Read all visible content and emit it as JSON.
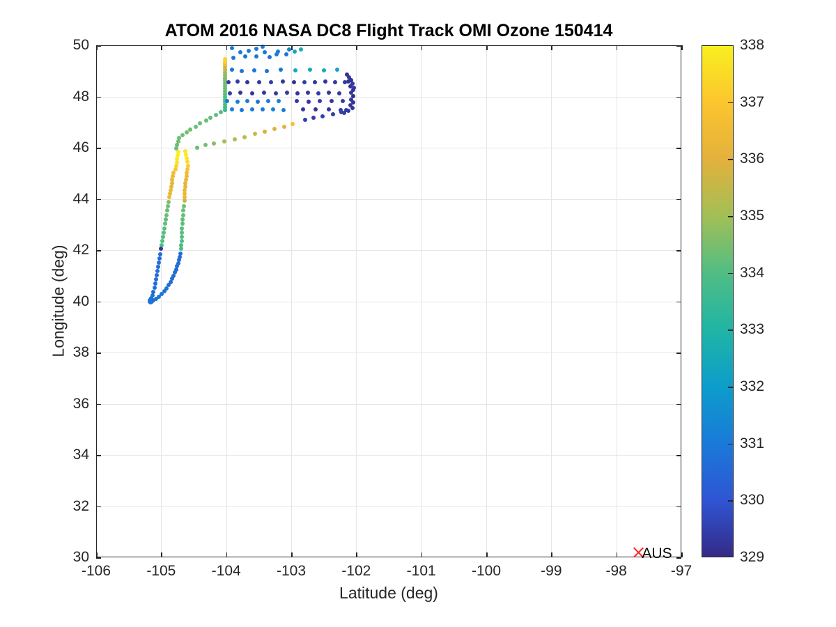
{
  "title": "ATOM 2016 NASA DC8 Flight Track OMI Ozone 150414",
  "xlabel": "Latitude (deg)",
  "ylabel": "Longitude (deg)",
  "colors": {
    "background": "#ffffff",
    "axis": "#262626",
    "grid": "#e6e6e6",
    "title": "#000000",
    "marker_red": "#ff1f1f"
  },
  "chart_data": {
    "type": "scatter",
    "title": "ATOM 2016 NASA DC8 Flight Track OMI Ozone 150414",
    "xlabel": "Latitude (deg)",
    "ylabel": "Longitude (deg)",
    "xlim": [
      -106,
      -97
    ],
    "ylim": [
      30,
      50
    ],
    "xticks": [
      -106,
      -105,
      -104,
      -103,
      -102,
      -101,
      -100,
      -99,
      -98,
      -97
    ],
    "yticks": [
      30,
      32,
      34,
      36,
      38,
      40,
      42,
      44,
      46,
      48,
      50
    ],
    "grid": true,
    "colorbar": {
      "min": 329,
      "max": 338,
      "ticks": [
        329,
        330,
        331,
        332,
        333,
        334,
        335,
        336,
        337,
        338
      ],
      "position": "right"
    },
    "colormap": {
      "name": "parula",
      "colors": [
        "#352a87",
        "#2f55d4",
        "#1a7ad9",
        "#0d9dcb",
        "#20b5a5",
        "#51bd84",
        "#a2bf56",
        "#e3b13c",
        "#fcc52f",
        "#f8ef1f"
      ]
    },
    "marker": {
      "label": "AUS",
      "x": -97.66,
      "y": 30.19,
      "style": "x",
      "color": "#ff1f1f"
    },
    "points": [
      [
        -104.02,
        47.47,
        333.5
      ],
      [
        -104.02,
        47.58,
        333.6
      ],
      [
        -104.02,
        47.68,
        333.8
      ],
      [
        -104.02,
        47.79,
        333.9
      ],
      [
        -104.02,
        47.89,
        334.0
      ],
      [
        -104.02,
        48.0,
        334.0
      ],
      [
        -104.02,
        48.1,
        334.1
      ],
      [
        -104.02,
        48.21,
        334.2
      ],
      [
        -104.02,
        48.31,
        334.3
      ],
      [
        -104.02,
        48.42,
        334.3
      ],
      [
        -104.02,
        48.52,
        334.4
      ],
      [
        -104.02,
        48.63,
        334.5
      ],
      [
        -104.02,
        48.73,
        334.6
      ],
      [
        -104.02,
        48.84,
        334.7
      ],
      [
        -104.02,
        48.94,
        334.9
      ],
      [
        -104.02,
        49.05,
        335.3
      ],
      [
        -104.02,
        49.15,
        335.9
      ],
      [
        -104.02,
        49.26,
        336.6
      ],
      [
        -104.02,
        49.36,
        337.1
      ],
      [
        -104.02,
        49.46,
        337.3
      ],
      [
        -103.91,
        49.89,
        331.0
      ],
      [
        -103.89,
        49.51,
        330.9
      ],
      [
        -103.78,
        49.73,
        331.0
      ],
      [
        -103.71,
        49.56,
        330.8
      ],
      [
        -103.65,
        49.78,
        331.1
      ],
      [
        -103.54,
        49.56,
        330.9
      ],
      [
        -103.54,
        49.86,
        331.0
      ],
      [
        -103.44,
        49.95,
        331.1
      ],
      [
        -103.41,
        49.73,
        330.9
      ],
      [
        -103.33,
        49.54,
        330.8
      ],
      [
        -103.22,
        49.65,
        331.0
      ],
      [
        -103.2,
        49.76,
        331.1
      ],
      [
        -103.07,
        49.65,
        330.9
      ],
      [
        -103.03,
        49.84,
        331.2
      ],
      [
        -102.95,
        49.76,
        332.4
      ],
      [
        -102.85,
        49.84,
        332.6
      ],
      [
        -103.91,
        49.05,
        330.8
      ],
      [
        -103.76,
        48.99,
        330.9
      ],
      [
        -103.57,
        49.03,
        330.9
      ],
      [
        -103.37,
        48.99,
        330.8
      ],
      [
        -103.16,
        49.04,
        330.9
      ],
      [
        -102.94,
        49.02,
        332.4
      ],
      [
        -102.71,
        49.04,
        332.5
      ],
      [
        -102.5,
        49.02,
        332.6
      ],
      [
        -102.29,
        49.04,
        332.4
      ],
      [
        -103.96,
        48.56,
        329.3
      ],
      [
        -103.83,
        48.58,
        329.4
      ],
      [
        -103.67,
        48.56,
        329.2
      ],
      [
        -103.49,
        48.57,
        329.3
      ],
      [
        -103.31,
        48.56,
        329.4
      ],
      [
        -103.13,
        48.58,
        329.3
      ],
      [
        -102.96,
        48.56,
        329.2
      ],
      [
        -102.8,
        48.57,
        329.4
      ],
      [
        -102.64,
        48.56,
        329.3
      ],
      [
        -102.48,
        48.58,
        329.2
      ],
      [
        -102.32,
        48.56,
        329.3
      ],
      [
        -102.18,
        48.57,
        329.4
      ],
      [
        -103.94,
        48.13,
        329.4
      ],
      [
        -103.78,
        48.14,
        329.3
      ],
      [
        -103.6,
        48.13,
        329.2
      ],
      [
        -103.42,
        48.15,
        329.3
      ],
      [
        -103.24,
        48.13,
        329.4
      ],
      [
        -103.06,
        48.14,
        329.3
      ],
      [
        -102.9,
        48.13,
        329.2
      ],
      [
        -102.74,
        48.15,
        329.3
      ],
      [
        -102.58,
        48.13,
        329.4
      ],
      [
        -102.42,
        48.14,
        329.3
      ],
      [
        -102.26,
        48.13,
        329.3
      ],
      [
        -103.99,
        47.82,
        331.0
      ],
      [
        -103.83,
        47.8,
        331.1
      ],
      [
        -103.67,
        47.83,
        331.0
      ],
      [
        -103.51,
        47.8,
        330.9
      ],
      [
        -103.35,
        47.82,
        331.0
      ],
      [
        -103.19,
        47.81,
        331.1
      ],
      [
        -102.91,
        47.82,
        329.4
      ],
      [
        -102.73,
        47.8,
        329.3
      ],
      [
        -102.56,
        47.82,
        329.4
      ],
      [
        -102.38,
        47.81,
        329.3
      ],
      [
        -102.21,
        47.83,
        329.4
      ],
      [
        -103.91,
        47.5,
        331.1
      ],
      [
        -103.76,
        47.48,
        331.0
      ],
      [
        -103.6,
        47.51,
        331.1
      ],
      [
        -103.44,
        47.49,
        331.0
      ],
      [
        -103.28,
        47.5,
        331.2
      ],
      [
        -103.12,
        47.48,
        331.0
      ],
      [
        -102.82,
        47.5,
        329.3
      ],
      [
        -102.63,
        47.49,
        329.2
      ],
      [
        -102.42,
        47.51,
        329.3
      ],
      [
        -102.24,
        47.48,
        329.4
      ],
      [
        -102.14,
        48.86,
        329.2
      ],
      [
        -102.11,
        48.75,
        329.3
      ],
      [
        -102.08,
        48.64,
        329.1
      ],
      [
        -102.06,
        48.5,
        329.3
      ],
      [
        -102.09,
        48.39,
        329.2
      ],
      [
        -102.04,
        48.34,
        329.3
      ],
      [
        -102.05,
        48.26,
        329.2
      ],
      [
        -102.08,
        48.15,
        329.3
      ],
      [
        -102.05,
        48.01,
        329.1
      ],
      [
        -102.08,
        47.88,
        329.3
      ],
      [
        -102.05,
        47.77,
        329.2
      ],
      [
        -102.09,
        47.66,
        329.3
      ],
      [
        -102.06,
        47.55,
        329.2
      ],
      [
        -102.12,
        47.44,
        329.3
      ],
      [
        -102.19,
        47.36,
        329.4
      ],
      [
        -102.12,
        48.59,
        329.2
      ],
      [
        -102.79,
        47.09,
        329.5
      ],
      [
        -102.66,
        47.17,
        329.4
      ],
      [
        -102.52,
        47.22,
        329.5
      ],
      [
        -102.36,
        47.31,
        329.4
      ],
      [
        -102.23,
        47.39,
        329.5
      ],
      [
        -102.15,
        47.47,
        329.4
      ],
      [
        -104.45,
        46.0,
        334.3
      ],
      [
        -104.32,
        46.11,
        334.4
      ],
      [
        -104.19,
        46.16,
        334.6
      ],
      [
        -104.03,
        46.24,
        335.0
      ],
      [
        -103.87,
        46.33,
        335.2
      ],
      [
        -103.72,
        46.41,
        335.4
      ],
      [
        -103.56,
        46.54,
        335.6
      ],
      [
        -103.41,
        46.63,
        335.8
      ],
      [
        -103.26,
        46.73,
        335.9
      ],
      [
        -103.11,
        46.82,
        336.1
      ],
      [
        -102.98,
        46.92,
        336.7
      ],
      [
        -104.08,
        47.39,
        334.1
      ],
      [
        -104.16,
        47.28,
        334.2
      ],
      [
        -104.24,
        47.17,
        334.2
      ],
      [
        -104.31,
        47.06,
        334.3
      ],
      [
        -104.4,
        46.95,
        334.3
      ],
      [
        -104.47,
        46.82,
        334.3
      ],
      [
        -104.55,
        46.71,
        334.4
      ],
      [
        -104.61,
        46.6,
        334.4
      ],
      [
        -104.67,
        46.49,
        334.4
      ],
      [
        -104.72,
        46.38,
        334.4
      ],
      [
        -104.74,
        46.24,
        334.4
      ],
      [
        -104.76,
        46.11,
        334.3
      ],
      [
        -104.77,
        45.97,
        334.3
      ],
      [
        -104.74,
        45.84,
        337.9
      ],
      [
        -104.75,
        45.7,
        338.0
      ],
      [
        -104.76,
        45.56,
        337.9
      ],
      [
        -104.76,
        45.43,
        337.7
      ],
      [
        -104.77,
        45.29,
        337.4
      ],
      [
        -104.78,
        45.16,
        337.0
      ],
      [
        -104.81,
        45.02,
        336.6
      ],
      [
        -104.82,
        44.88,
        336.4
      ],
      [
        -104.83,
        44.75,
        336.3
      ],
      [
        -104.83,
        44.61,
        336.2
      ],
      [
        -104.84,
        44.48,
        336.2
      ],
      [
        -104.85,
        44.34,
        336.3
      ],
      [
        -104.86,
        44.2,
        336.3
      ],
      [
        -104.87,
        44.07,
        336.4
      ],
      [
        -104.89,
        43.88,
        334.5
      ],
      [
        -104.9,
        43.71,
        334.4
      ],
      [
        -104.91,
        43.55,
        334.3
      ],
      [
        -104.92,
        43.36,
        334.3
      ],
      [
        -104.93,
        43.2,
        334.2
      ],
      [
        -104.94,
        43.03,
        334.2
      ],
      [
        -104.95,
        42.84,
        334.1
      ],
      [
        -104.96,
        42.68,
        334.1
      ],
      [
        -104.97,
        42.52,
        334.0
      ],
      [
        -104.98,
        42.35,
        334.0
      ],
      [
        -104.99,
        42.19,
        333.9
      ],
      [
        -105.0,
        42.05,
        329.3
      ],
      [
        -105.01,
        41.84,
        330.6
      ],
      [
        -105.02,
        41.67,
        330.6
      ],
      [
        -105.04,
        41.51,
        330.7
      ],
      [
        -105.05,
        41.35,
        330.6
      ],
      [
        -105.06,
        41.18,
        330.7
      ],
      [
        -105.07,
        41.02,
        330.6
      ],
      [
        -105.08,
        40.86,
        330.7
      ],
      [
        -105.09,
        40.69,
        330.6
      ],
      [
        -105.1,
        40.53,
        330.7
      ],
      [
        -105.12,
        40.37,
        330.6
      ],
      [
        -105.13,
        40.23,
        330.7
      ],
      [
        -105.15,
        40.12,
        330.8
      ],
      [
        -105.17,
        40.04,
        330.9
      ],
      [
        -105.18,
        39.99,
        331.0
      ],
      [
        -105.16,
        39.97,
        330.9
      ],
      [
        -105.14,
        39.99,
        330.8
      ],
      [
        -105.12,
        40.04,
        330.7
      ],
      [
        -104.63,
        45.86,
        337.8
      ],
      [
        -104.62,
        45.73,
        337.9
      ],
      [
        -104.61,
        45.59,
        337.8
      ],
      [
        -104.6,
        45.46,
        337.5
      ],
      [
        -104.59,
        45.29,
        337.2
      ],
      [
        -104.6,
        45.16,
        336.9
      ],
      [
        -104.61,
        45.02,
        336.5
      ],
      [
        -104.61,
        44.88,
        336.4
      ],
      [
        -104.62,
        44.75,
        336.3
      ],
      [
        -104.63,
        44.61,
        336.2
      ],
      [
        -104.63,
        44.48,
        336.2
      ],
      [
        -104.64,
        44.34,
        336.3
      ],
      [
        -104.64,
        44.2,
        336.3
      ],
      [
        -104.64,
        44.07,
        336.4
      ],
      [
        -104.64,
        43.93,
        335.6
      ],
      [
        -104.65,
        43.71,
        334.4
      ],
      [
        -104.66,
        43.55,
        334.3
      ],
      [
        -104.66,
        43.36,
        334.3
      ],
      [
        -104.67,
        43.2,
        334.2
      ],
      [
        -104.67,
        43.03,
        334.2
      ],
      [
        -104.68,
        42.84,
        334.1
      ],
      [
        -104.68,
        42.68,
        334.1
      ],
      [
        -104.68,
        42.52,
        334.0
      ],
      [
        -104.68,
        42.35,
        334.0
      ],
      [
        -104.69,
        42.19,
        333.9
      ],
      [
        -104.69,
        42.05,
        333.9
      ],
      [
        -104.7,
        41.86,
        330.7
      ],
      [
        -104.71,
        41.73,
        330.6
      ],
      [
        -104.73,
        41.62,
        330.7
      ],
      [
        -104.74,
        41.48,
        330.6
      ],
      [
        -104.76,
        41.37,
        330.7
      ],
      [
        -104.77,
        41.24,
        330.6
      ],
      [
        -104.79,
        41.13,
        330.7
      ],
      [
        -104.81,
        40.99,
        330.6
      ],
      [
        -104.83,
        40.88,
        330.7
      ],
      [
        -104.85,
        40.75,
        330.6
      ],
      [
        -104.89,
        40.64,
        330.7
      ],
      [
        -104.92,
        40.5,
        330.8
      ],
      [
        -104.95,
        40.39,
        330.7
      ],
      [
        -104.99,
        40.29,
        330.8
      ],
      [
        -105.04,
        40.18,
        330.9
      ],
      [
        -105.08,
        40.1,
        330.8
      ]
    ]
  }
}
